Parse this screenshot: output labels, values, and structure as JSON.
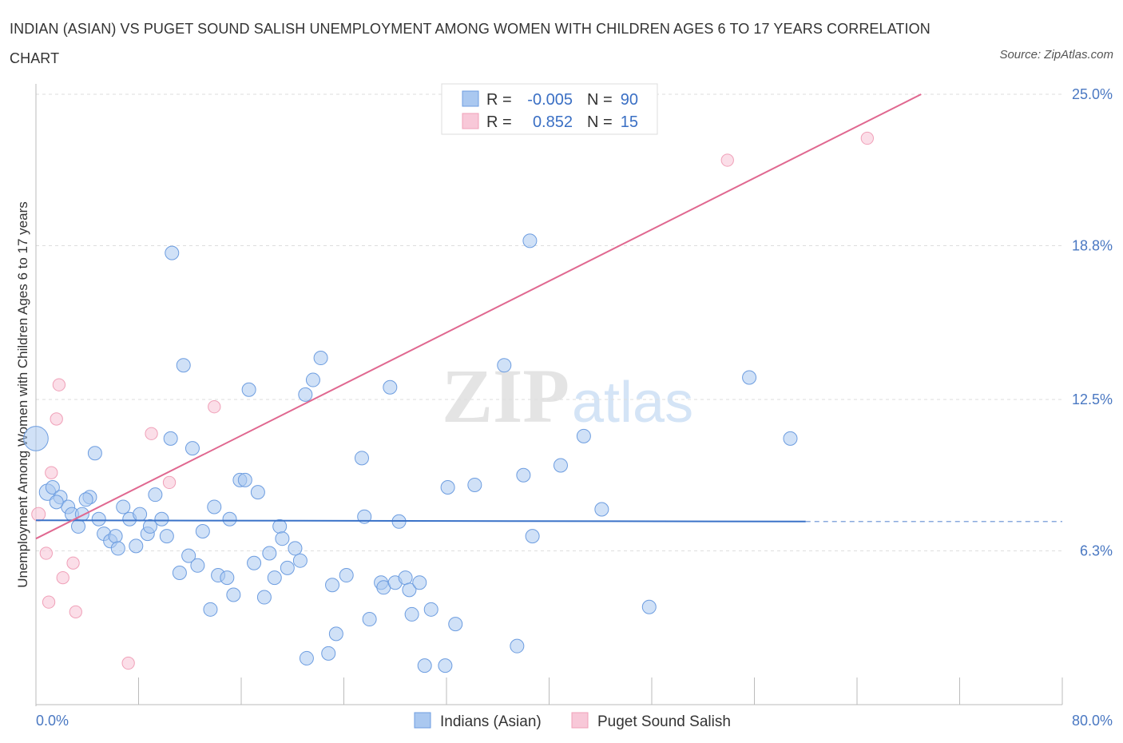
{
  "title": "INDIAN (ASIAN) VS PUGET SOUND SALISH UNEMPLOYMENT AMONG WOMEN WITH CHILDREN AGES 6 TO 17 YEARS CORRELATION CHART",
  "source": "Source: ZipAtlas.com",
  "watermark": {
    "zip": "ZIP",
    "atlas": "atlas"
  },
  "colors": {
    "blue": "#6d9de0",
    "blue_fill": "#aac8f0",
    "pink": "#f0a0b8",
    "pink_fill": "#f8c8d8",
    "blue_line": "#3a72c8",
    "pink_line": "#e06890"
  },
  "legend": {
    "rows": [
      {
        "r_label": "R =",
        "r_value": "-0.005",
        "n_label": "N =",
        "n_value": "90"
      },
      {
        "r_label": "R =",
        "r_value": "0.852",
        "n_label": "N =",
        "n_value": "15"
      }
    ]
  },
  "bottom_legend": [
    "Indians (Asian)",
    "Puget Sound Salish"
  ],
  "chart_data": {
    "type": "scatter",
    "ylabel": "Unemployment Among Women with Children Ages 6 to 17 years",
    "x_tick_labels": [
      "0.0%",
      "80.0%"
    ],
    "y_tick_labels": [
      "25.0%",
      "18.8%",
      "12.5%",
      "6.3%"
    ],
    "y_ticks": [
      25.0,
      18.8,
      12.5,
      6.3
    ],
    "xlim": [
      0,
      80
    ],
    "ylim": [
      0,
      25
    ],
    "series": [
      {
        "name": "Indians (Asian)",
        "r": -0.005,
        "n": 90,
        "trend": {
          "x0": 0,
          "y0": 7.55,
          "x1": 60,
          "y1": 7.5,
          "dash_x1": 80,
          "dash_y1": 7.5
        },
        "points": [
          [
            0.0,
            10.9,
            18
          ],
          [
            0.9,
            8.7,
            12
          ],
          [
            1.3,
            8.9,
            10
          ],
          [
            1.9,
            8.5,
            10
          ],
          [
            2.5,
            8.1,
            10
          ],
          [
            2.8,
            7.8,
            10
          ],
          [
            3.3,
            7.3,
            10
          ],
          [
            3.6,
            7.8,
            10
          ],
          [
            4.2,
            8.5,
            10
          ],
          [
            4.6,
            10.3,
            10
          ],
          [
            4.9,
            7.6,
            10
          ],
          [
            5.3,
            7.0,
            10
          ],
          [
            5.8,
            6.7,
            10
          ],
          [
            6.2,
            6.9,
            10
          ],
          [
            6.4,
            6.4,
            10
          ],
          [
            6.8,
            8.1,
            10
          ],
          [
            7.3,
            7.6,
            10
          ],
          [
            7.8,
            6.5,
            10
          ],
          [
            8.1,
            7.8,
            10
          ],
          [
            8.7,
            7.0,
            10
          ],
          [
            8.9,
            7.3,
            10
          ],
          [
            9.3,
            8.6,
            10
          ],
          [
            9.8,
            7.6,
            10
          ],
          [
            10.2,
            6.9,
            10
          ],
          [
            10.5,
            10.9,
            10
          ],
          [
            10.6,
            18.5,
            10
          ],
          [
            11.2,
            5.4,
            10
          ],
          [
            11.5,
            13.9,
            10
          ],
          [
            11.9,
            6.1,
            10
          ],
          [
            12.2,
            10.5,
            10
          ],
          [
            12.6,
            5.7,
            10
          ],
          [
            13.0,
            7.1,
            10
          ],
          [
            13.6,
            3.9,
            10
          ],
          [
            13.9,
            8.1,
            10
          ],
          [
            14.2,
            5.3,
            10
          ],
          [
            14.9,
            5.2,
            10
          ],
          [
            15.1,
            7.6,
            10
          ],
          [
            15.4,
            4.5,
            10
          ],
          [
            15.9,
            9.2,
            10
          ],
          [
            16.3,
            9.2,
            10
          ],
          [
            16.6,
            12.9,
            10
          ],
          [
            17.0,
            5.8,
            10
          ],
          [
            17.3,
            8.7,
            10
          ],
          [
            17.8,
            4.4,
            10
          ],
          [
            18.2,
            6.2,
            10
          ],
          [
            18.6,
            5.2,
            10
          ],
          [
            19.0,
            7.3,
            10
          ],
          [
            19.2,
            6.8,
            10
          ],
          [
            19.6,
            5.6,
            10
          ],
          [
            20.2,
            6.4,
            10
          ],
          [
            20.6,
            5.9,
            10
          ],
          [
            21.0,
            12.7,
            10
          ],
          [
            21.1,
            1.9,
            10
          ],
          [
            21.6,
            13.3,
            10
          ],
          [
            22.2,
            14.2,
            10
          ],
          [
            22.8,
            2.1,
            10
          ],
          [
            23.1,
            4.9,
            10
          ],
          [
            23.4,
            2.9,
            10
          ],
          [
            24.2,
            5.3,
            10
          ],
          [
            25.4,
            10.1,
            10
          ],
          [
            25.6,
            7.7,
            10
          ],
          [
            26.0,
            3.5,
            10
          ],
          [
            26.9,
            5.0,
            10
          ],
          [
            27.1,
            4.8,
            10
          ],
          [
            27.6,
            13.0,
            10
          ],
          [
            28.0,
            5.0,
            10
          ],
          [
            28.3,
            7.5,
            10
          ],
          [
            28.8,
            5.2,
            10
          ],
          [
            29.1,
            4.7,
            10
          ],
          [
            29.3,
            3.7,
            10
          ],
          [
            29.9,
            5.0,
            10
          ],
          [
            30.3,
            1.6,
            10
          ],
          [
            30.8,
            3.9,
            10
          ],
          [
            31.9,
            1.6,
            10
          ],
          [
            32.1,
            8.9,
            10
          ],
          [
            32.7,
            3.3,
            10
          ],
          [
            34.2,
            9.0,
            10
          ],
          [
            36.5,
            13.9,
            10
          ],
          [
            37.5,
            2.4,
            10
          ],
          [
            38.0,
            9.4,
            10
          ],
          [
            38.5,
            19.0,
            10
          ],
          [
            38.7,
            6.9,
            10
          ],
          [
            40.9,
            9.8,
            10
          ],
          [
            42.7,
            11.0,
            10
          ],
          [
            44.1,
            8.0,
            10
          ],
          [
            47.8,
            4.0,
            10
          ],
          [
            55.6,
            13.4,
            10
          ],
          [
            58.8,
            10.9,
            10
          ],
          [
            1.6,
            8.3,
            10
          ],
          [
            3.9,
            8.4,
            10
          ]
        ]
      },
      {
        "name": "Puget Sound Salish",
        "r": 0.852,
        "n": 15,
        "trend": {
          "x0": 0,
          "y0": 6.8,
          "x1": 69,
          "y1": 25.0
        },
        "points": [
          [
            0.2,
            7.8,
            10
          ],
          [
            0.8,
            6.2,
            9
          ],
          [
            1.0,
            4.2,
            9
          ],
          [
            1.2,
            9.5,
            9
          ],
          [
            1.6,
            11.7,
            9
          ],
          [
            1.8,
            13.1,
            9
          ],
          [
            2.1,
            5.2,
            9
          ],
          [
            2.9,
            5.8,
            9
          ],
          [
            3.1,
            3.8,
            9
          ],
          [
            7.2,
            1.7,
            9
          ],
          [
            9.0,
            11.1,
            9
          ],
          [
            10.4,
            9.1,
            9
          ],
          [
            13.9,
            12.2,
            9
          ],
          [
            53.9,
            22.3,
            9
          ],
          [
            64.8,
            23.2,
            9
          ]
        ]
      }
    ]
  }
}
